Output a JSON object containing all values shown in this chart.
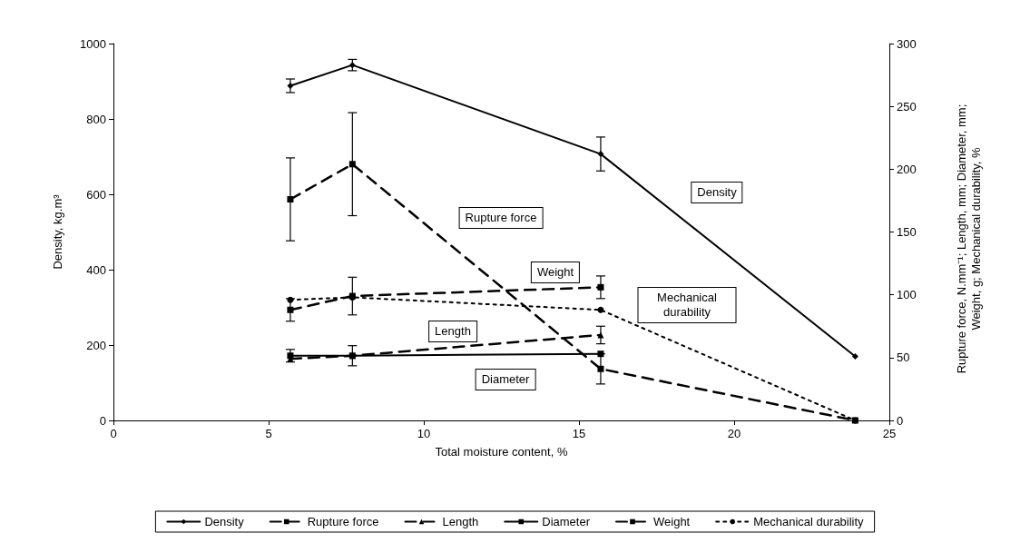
{
  "chart_data": {
    "type": "line",
    "xlabel": "Total moisture content, %",
    "ylabel": "Density, kg.m³",
    "y2label": "Rupture force, N.mm⁻¹; Length, mm; Diameter, mm; Weight, g; Mechanical durability, %",
    "xlim": [
      0,
      25
    ],
    "xticks": [
      0,
      5,
      10,
      15,
      20,
      25
    ],
    "ylim": [
      0,
      1000
    ],
    "yticks": [
      0,
      200,
      400,
      600,
      800,
      1000
    ],
    "y2lim": [
      0,
      300
    ],
    "y2ticks": [
      0,
      50,
      100,
      150,
      200,
      250,
      300
    ],
    "grid": false,
    "legend": "bottom",
    "series": [
      {
        "name": "Density",
        "color": "#000000",
        "x": [
          5.7,
          7.7,
          15.7,
          23.9
        ],
        "values": [
          888,
          943,
          707,
          170
        ],
        "errors": [
          18,
          15,
          45,
          null
        ],
        "marker": "diamond",
        "line_style": "solid"
      },
      {
        "name": "Rupture force",
        "color": "#000000",
        "axis": "y2",
        "x": [
          5.7,
          7.7,
          15.7,
          23.9
        ],
        "values": [
          176,
          204,
          41,
          0
        ],
        "errors": [
          33,
          41,
          12,
          null
        ],
        "marker": "square",
        "line_style": "dashed"
      },
      {
        "name": "Length",
        "color": "#000000",
        "axis": "y2",
        "x": [
          5.7,
          7.7,
          15.7
        ],
        "values": [
          49,
          51.5,
          68
        ],
        "errors": [
          null,
          null,
          7
        ],
        "marker": "triangle",
        "line_style": "dashed"
      },
      {
        "name": "Diameter",
        "color": "#000000",
        "axis": "y2",
        "x": [
          5.7,
          7.7,
          15.7
        ],
        "values": [
          51.5,
          51.5,
          53
        ],
        "errors": [
          5,
          8,
          null
        ],
        "marker": "square",
        "line_style": "solid"
      },
      {
        "name": "Weight",
        "color": "#000000",
        "axis": "y2",
        "x": [
          5.7,
          7.7,
          15.7
        ],
        "values": [
          88,
          99,
          106
        ],
        "errors": [
          9,
          15,
          9
        ],
        "marker": "square",
        "line_style": "dashed"
      },
      {
        "name": "Mechanical durability",
        "color": "#000000",
        "axis": "y2",
        "x": [
          5.7,
          7.7,
          15.7,
          23.9
        ],
        "values": [
          96,
          98,
          88,
          0
        ],
        "marker": "circle",
        "line_style": "dotted"
      }
    ],
    "annotations": [
      "Density",
      "Rupture force",
      "Weight",
      "Length",
      "Diameter",
      "Mechanical durability"
    ]
  }
}
